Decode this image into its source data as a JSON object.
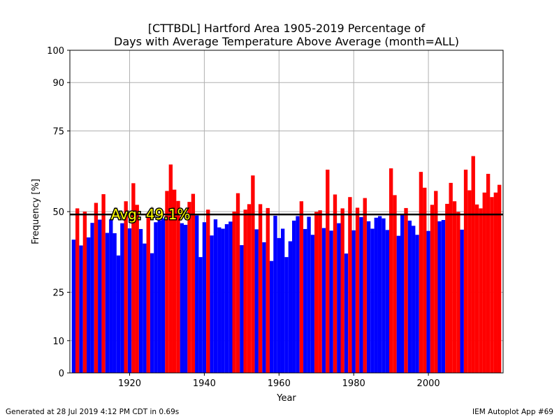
{
  "chart_data": {
    "type": "bar",
    "title": "[CTTBDL] Hartford Area 1905-2019 Percentage of\nDays with Average Temperature Above Average (month=ALL)",
    "xlabel": "Year",
    "ylabel": "Frequency [%]",
    "xlim": [
      1904,
      2020
    ],
    "ylim": [
      0,
      100
    ],
    "x_ticks": [
      1920,
      1940,
      1960,
      1980,
      2000
    ],
    "y_ticks": [
      0,
      10,
      25,
      50,
      75,
      90,
      100
    ],
    "grid": true,
    "average": 49.1,
    "average_label": "Avg: 49.1%",
    "colors": {
      "above": "#ff0000",
      "below": "#0000ff",
      "avg_line": "#000000",
      "avg_text": "#ffff00",
      "grid": "#b0b0b0"
    },
    "years": [
      1905,
      1906,
      1907,
      1908,
      1909,
      1910,
      1911,
      1912,
      1913,
      1914,
      1915,
      1916,
      1917,
      1918,
      1919,
      1920,
      1921,
      1922,
      1923,
      1924,
      1925,
      1926,
      1927,
      1928,
      1929,
      1930,
      1931,
      1932,
      1933,
      1934,
      1935,
      1936,
      1937,
      1938,
      1939,
      1940,
      1941,
      1942,
      1943,
      1944,
      1945,
      1946,
      1947,
      1948,
      1949,
      1950,
      1951,
      1952,
      1953,
      1954,
      1955,
      1956,
      1957,
      1958,
      1959,
      1960,
      1961,
      1962,
      1963,
      1964,
      1965,
      1966,
      1967,
      1968,
      1969,
      1970,
      1971,
      1972,
      1973,
      1974,
      1975,
      1976,
      1977,
      1978,
      1979,
      1980,
      1981,
      1982,
      1983,
      1984,
      1985,
      1986,
      1987,
      1988,
      1989,
      1990,
      1991,
      1992,
      1993,
      1994,
      1995,
      1996,
      1997,
      1998,
      1999,
      2000,
      2001,
      2002,
      2003,
      2004,
      2005,
      2006,
      2007,
      2008,
      2009,
      2010,
      2011,
      2012,
      2013,
      2014,
      2015,
      2016,
      2017,
      2018,
      2019
    ],
    "values": [
      41.3,
      51.0,
      39.5,
      50.0,
      42.0,
      46.5,
      52.7,
      47.5,
      55.4,
      43.4,
      47.6,
      43.3,
      36.4,
      46.4,
      53.2,
      44.8,
      58.8,
      52.1,
      44.6,
      40.1,
      49.6,
      37.1,
      46.7,
      47.3,
      47.9,
      56.4,
      64.6,
      56.8,
      53.3,
      46.4,
      45.9,
      53.0,
      55.5,
      48.8,
      35.9,
      46.7,
      50.6,
      42.6,
      47.6,
      45.1,
      44.7,
      46.1,
      46.9,
      50.0,
      55.7,
      39.6,
      50.6,
      52.3,
      61.2,
      44.5,
      52.3,
      40.5,
      51.1,
      34.7,
      48.7,
      41.8,
      44.7,
      35.9,
      40.8,
      47.2,
      48.6,
      53.2,
      44.6,
      48.4,
      42.8,
      49.9,
      50.4,
      44.9,
      63.0,
      44.1,
      55.3,
      46.4,
      51.0,
      37.0,
      54.5,
      44.2,
      51.2,
      48.3,
      54.2,
      47.0,
      44.7,
      48.1,
      48.6,
      47.9,
      44.3,
      63.4,
      55.1,
      42.5,
      49.0,
      51.1,
      47.2,
      45.6,
      42.8,
      62.3,
      57.4,
      44.0,
      52.1,
      56.4,
      47.0,
      47.4,
      52.4,
      58.9,
      53.2,
      49.9,
      44.4,
      63.0,
      56.6,
      67.2,
      52.2,
      51.0,
      55.9,
      61.7,
      54.5,
      55.9,
      58.3
    ]
  },
  "footer": {
    "left": "Generated at 28 Jul 2019 4:12 PM CDT in 0.69s",
    "right": "IEM Autoplot App #69"
  }
}
